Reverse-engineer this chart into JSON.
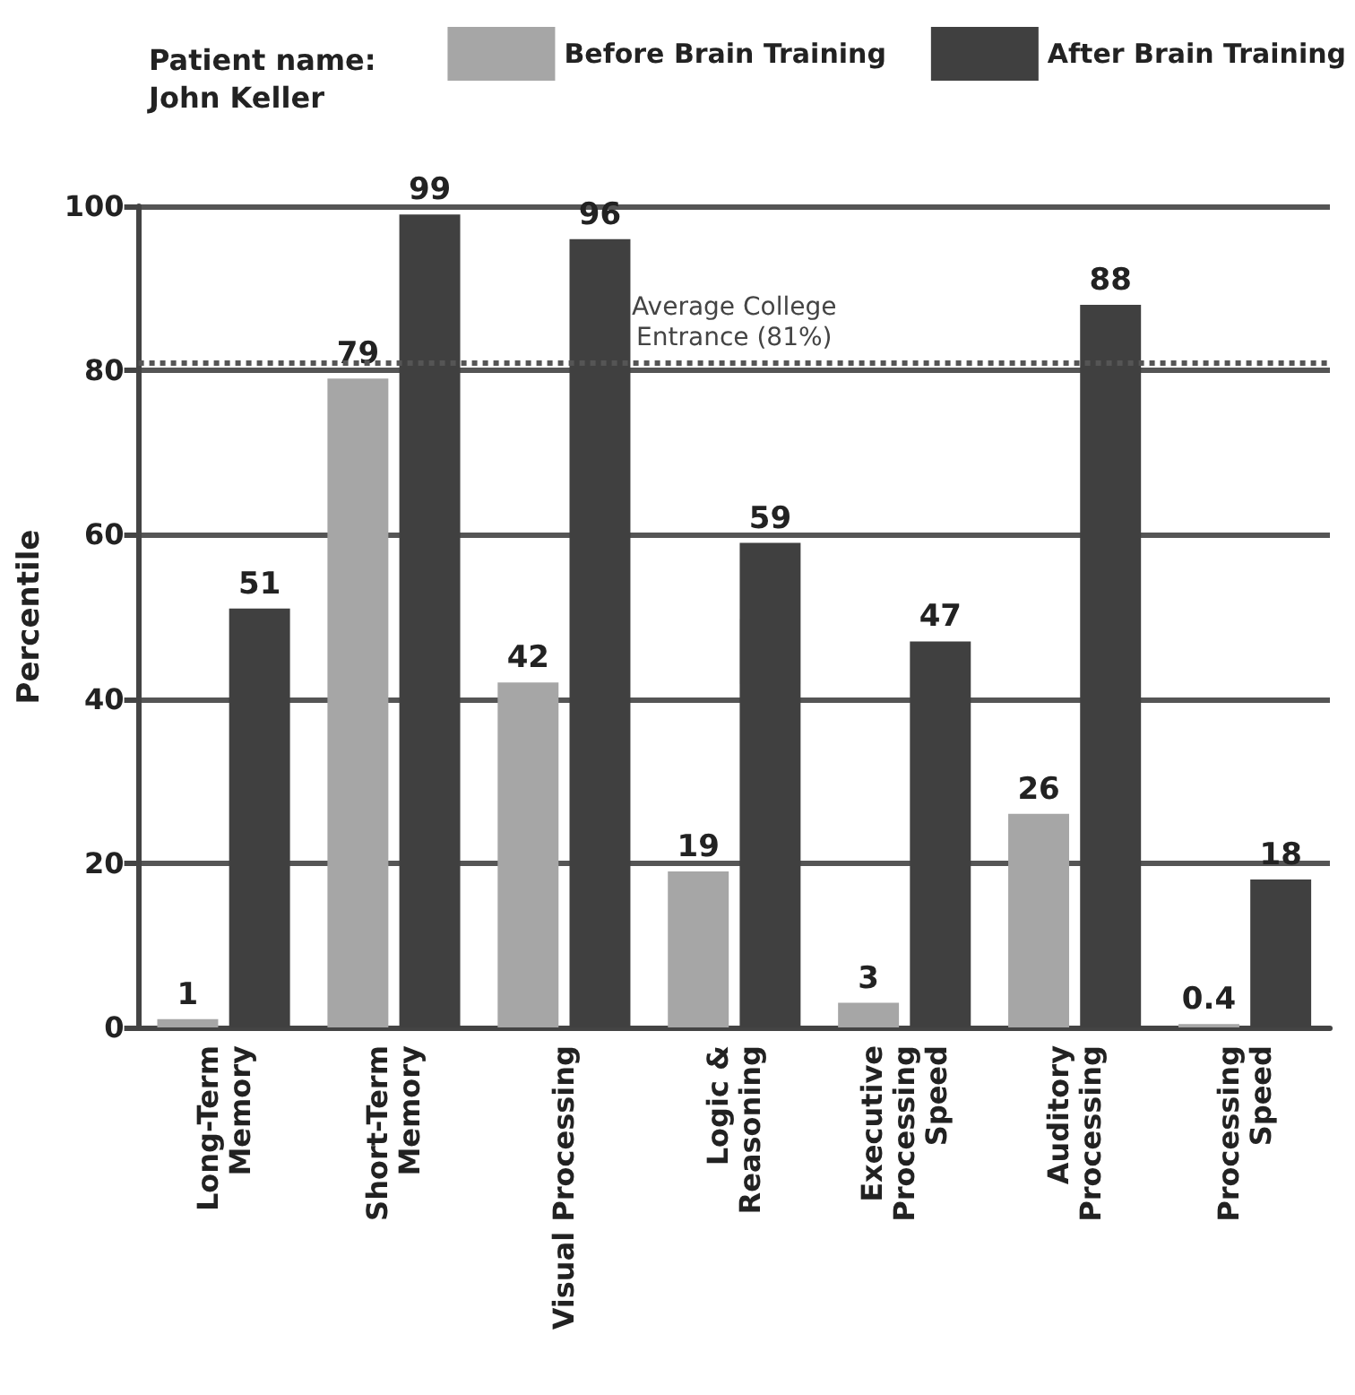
{
  "chart_data": {
    "type": "bar",
    "title": "Patient name:\nJohn Keller",
    "ylabel": "Percentile",
    "categories": [
      "Long-Term\nMemory",
      "Short-Term\nMemory",
      "Visual Processing",
      "Logic &\nReasoning",
      "Executive\nProcessing\nSpeed",
      "Auditory\nProcessing",
      "Processing\nSpeed"
    ],
    "series": [
      {
        "name": "Before Brain Training",
        "color": "#a6a6a6",
        "values": [
          1,
          79,
          42,
          19,
          3,
          26,
          0.4
        ]
      },
      {
        "name": "After Brain Training",
        "color": "#404040",
        "values": [
          51,
          99,
          96,
          59,
          47,
          88,
          18
        ]
      }
    ],
    "ylim": [
      0,
      100
    ],
    "yticks": [
      0,
      20,
      40,
      60,
      80,
      100
    ],
    "grid": "y",
    "legend": "top right",
    "data_labels": true,
    "ref_lines": [
      {
        "axis": "y",
        "value": 81,
        "label": "Average College\nEntrance (81%)",
        "color": "#555555",
        "line_style": "dotted"
      }
    ]
  }
}
